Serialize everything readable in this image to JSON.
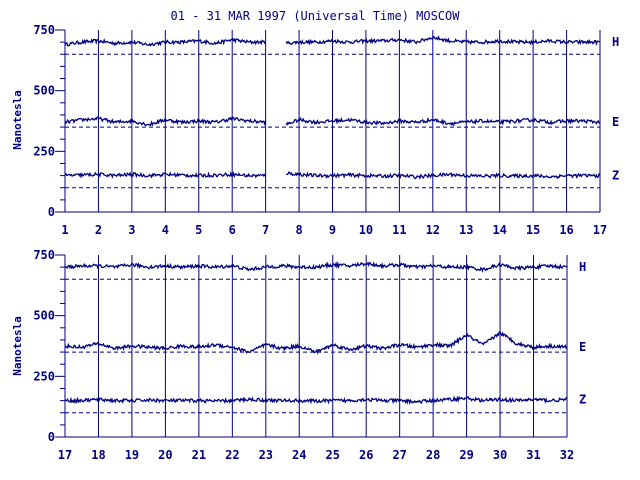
{
  "colors": {
    "line": "#000080",
    "background": "#ffffff"
  },
  "chart_data": [
    {
      "type": "line",
      "title": "01 - 31 MAR 1997 (Universal Time) MOSCOW",
      "ylabel": "Nanotesla",
      "xlim": [
        1,
        17
      ],
      "ylim": [
        0,
        750
      ],
      "x_ticks": [
        1,
        2,
        3,
        4,
        5,
        6,
        7,
        8,
        9,
        10,
        11,
        12,
        13,
        14,
        15,
        16,
        17
      ],
      "y_ticks": [
        0,
        250,
        500,
        750
      ],
      "grid": "vertical lines at each day",
      "gap": [
        7.0,
        7.6
      ],
      "series": [
        {
          "name": "H",
          "baseline": 650,
          "x": [
            1,
            1.5,
            2,
            2.5,
            3,
            3.5,
            4,
            4.5,
            5,
            5.5,
            6,
            6.5,
            7,
            7.6,
            8,
            8.5,
            9,
            9.5,
            10,
            10.5,
            11,
            11.5,
            12,
            12.5,
            13,
            13.5,
            14,
            14.5,
            15,
            15.5,
            16,
            16.5,
            17
          ],
          "values": [
            690,
            700,
            705,
            695,
            700,
            690,
            700,
            700,
            705,
            695,
            710,
            700,
            700,
            695,
            700,
            700,
            705,
            700,
            705,
            705,
            710,
            700,
            720,
            705,
            700,
            700,
            705,
            700,
            700,
            705,
            700,
            700,
            700
          ]
        },
        {
          "name": "E",
          "baseline": 350,
          "x": [
            1,
            1.5,
            2,
            2.5,
            3,
            3.5,
            4,
            4.5,
            5,
            5.5,
            6,
            6.5,
            7,
            7.6,
            8,
            8.5,
            9,
            9.5,
            10,
            10.5,
            11,
            11.5,
            12,
            12.5,
            13,
            13.5,
            14,
            14.5,
            15,
            15.5,
            16,
            16.5,
            17
          ],
          "values": [
            370,
            380,
            385,
            370,
            375,
            360,
            380,
            370,
            375,
            370,
            385,
            375,
            370,
            360,
            380,
            370,
            375,
            380,
            370,
            365,
            375,
            370,
            380,
            365,
            370,
            375,
            370,
            375,
            380,
            370,
            375,
            375,
            370
          ]
        },
        {
          "name": "Z",
          "baseline": 100,
          "x": [
            1,
            1.5,
            2,
            2.5,
            3,
            3.5,
            4,
            4.5,
            5,
            5.5,
            6,
            6.5,
            7,
            7.6,
            8,
            8.5,
            9,
            9.5,
            10,
            10.5,
            11,
            11.5,
            12,
            12.5,
            13,
            13.5,
            14,
            14.5,
            15,
            15.5,
            16,
            16.5,
            17
          ],
          "values": [
            150,
            152,
            155,
            150,
            155,
            150,
            155,
            152,
            150,
            152,
            155,
            150,
            150,
            160,
            155,
            150,
            150,
            152,
            150,
            148,
            150,
            145,
            150,
            155,
            150,
            148,
            150,
            148,
            150,
            145,
            150,
            150,
            150
          ]
        }
      ]
    },
    {
      "type": "line",
      "title": "",
      "ylabel": "Nanotesla",
      "xlim": [
        17,
        32
      ],
      "ylim": [
        0,
        750
      ],
      "x_ticks": [
        17,
        18,
        19,
        20,
        21,
        22,
        23,
        24,
        25,
        26,
        27,
        28,
        29,
        30,
        31,
        32
      ],
      "y_ticks": [
        0,
        250,
        500,
        750
      ],
      "grid": "vertical lines at each day",
      "series": [
        {
          "name": "H",
          "baseline": 650,
          "x": [
            17,
            17.5,
            18,
            18.5,
            19,
            19.5,
            20,
            20.5,
            21,
            21.5,
            22,
            22.5,
            23,
            23.5,
            24,
            24.5,
            25,
            25.5,
            26,
            26.5,
            27,
            27.5,
            28,
            28.5,
            29,
            29.5,
            30,
            30.5,
            31,
            31.5,
            32
          ],
          "values": [
            700,
            705,
            705,
            700,
            710,
            700,
            705,
            700,
            705,
            700,
            705,
            690,
            700,
            705,
            700,
            700,
            710,
            705,
            715,
            705,
            710,
            700,
            705,
            700,
            700,
            690,
            710,
            695,
            700,
            705,
            700
          ]
        },
        {
          "name": "E",
          "baseline": 350,
          "x": [
            17,
            17.5,
            18,
            18.5,
            19,
            19.5,
            20,
            20.5,
            21,
            21.5,
            22,
            22.5,
            23,
            23.5,
            24,
            24.5,
            25,
            25.5,
            26,
            26.5,
            27,
            27.5,
            28,
            28.5,
            29,
            29.5,
            30,
            30.5,
            31,
            31.5,
            32
          ],
          "values": [
            375,
            370,
            385,
            365,
            375,
            370,
            365,
            375,
            370,
            380,
            370,
            350,
            380,
            365,
            375,
            350,
            380,
            360,
            375,
            365,
            380,
            370,
            380,
            375,
            420,
            380,
            430,
            385,
            370,
            375,
            370
          ]
        },
        {
          "name": "Z",
          "baseline": 100,
          "x": [
            17,
            17.5,
            18,
            18.5,
            19,
            19.5,
            20,
            20.5,
            21,
            21.5,
            22,
            22.5,
            23,
            23.5,
            24,
            24.5,
            25,
            25.5,
            26,
            26.5,
            27,
            27.5,
            28,
            28.5,
            29,
            29.5,
            30,
            30.5,
            31,
            31.5,
            32
          ],
          "values": [
            150,
            150,
            155,
            150,
            150,
            152,
            150,
            150,
            150,
            148,
            150,
            155,
            152,
            150,
            150,
            148,
            150,
            150,
            155,
            150,
            150,
            145,
            150,
            155,
            160,
            150,
            155,
            150,
            155,
            150,
            155
          ]
        }
      ]
    }
  ]
}
